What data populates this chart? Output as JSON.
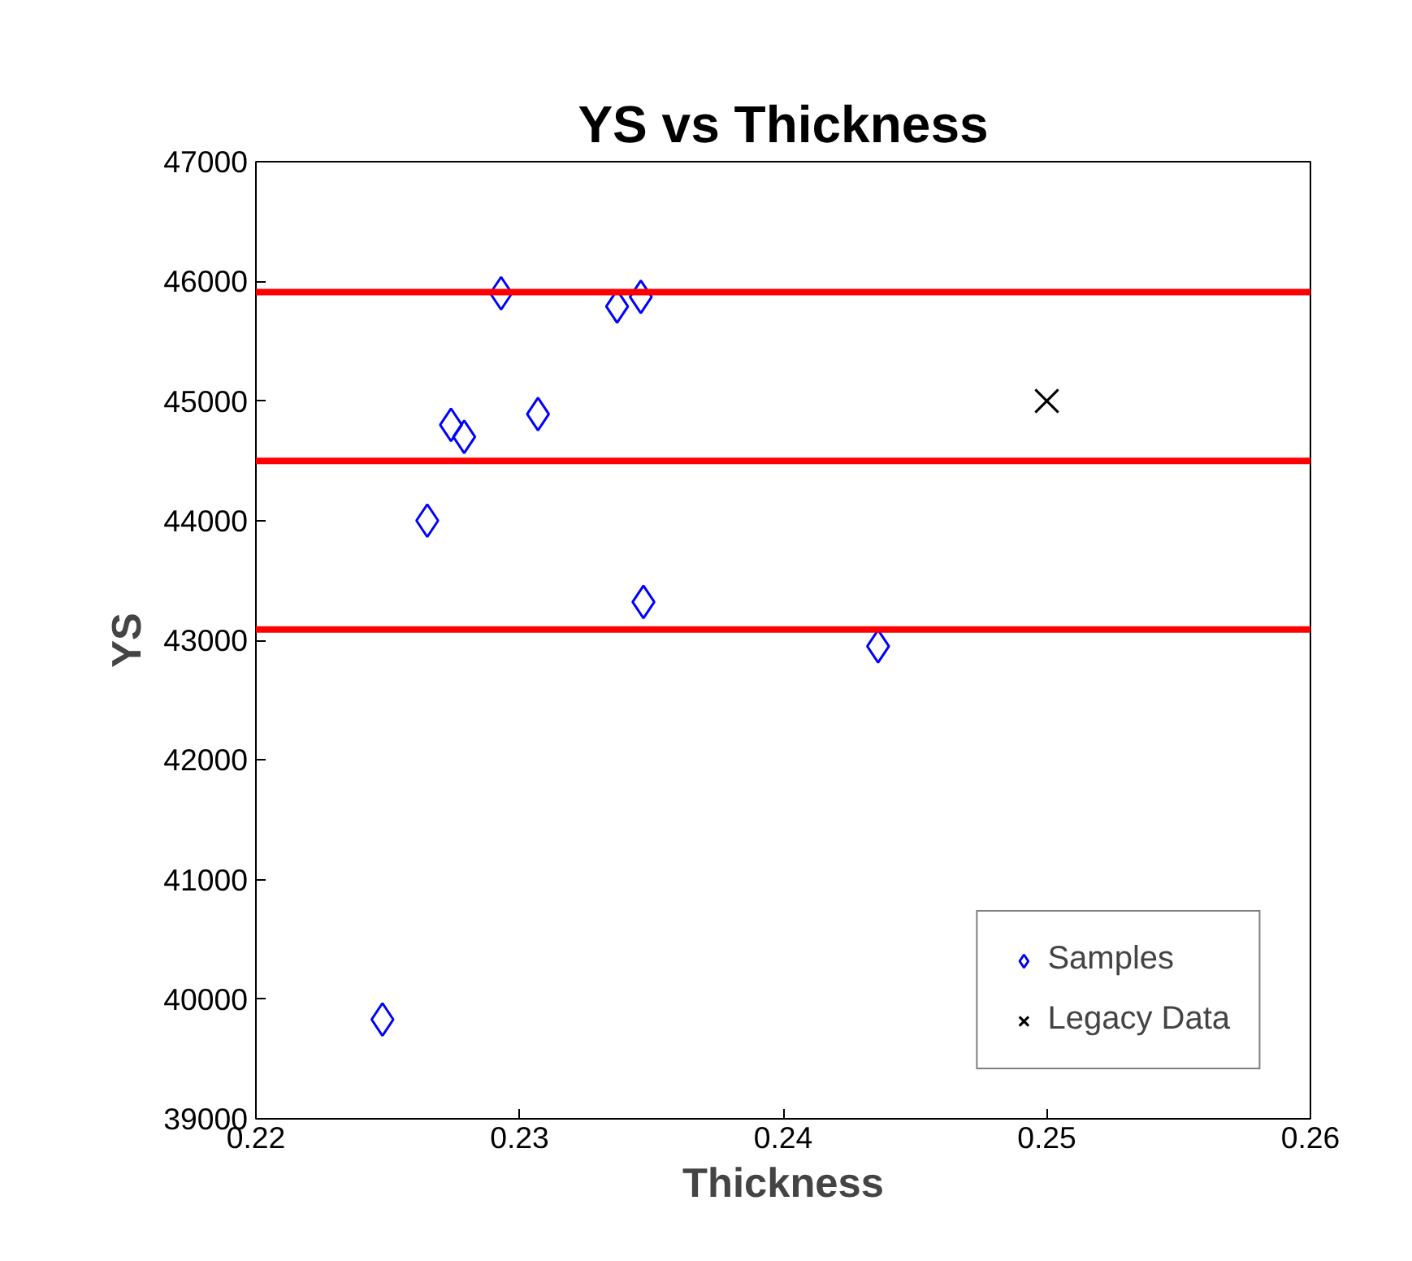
{
  "chart_data": {
    "type": "scatter",
    "title": "YS vs Thickness",
    "xlabel": "Thickness",
    "ylabel": "YS",
    "series": [
      {
        "name": "Samples",
        "color": "#0000ff",
        "marker": "diamond",
        "x": [
          0.2248,
          0.2265,
          0.2274,
          0.2279,
          0.2293,
          0.2307,
          0.2337,
          0.2346,
          0.2347,
          0.2436
        ],
        "values": [
          39830,
          44000,
          44800,
          44700,
          45900,
          44890,
          45790,
          45870,
          43320,
          42950
        ]
      },
      {
        "name": "Legacy Data",
        "color": "#000000",
        "marker": "cross",
        "x": [
          0.25
        ],
        "values": [
          45000
        ]
      }
    ],
    "xlim": [
      0.22,
      0.26
    ],
    "xticks": [
      0.22,
      0.23,
      0.24,
      0.25,
      0.26
    ],
    "ylim": [
      39000,
      47000
    ],
    "yticks": [
      39000,
      40000,
      41000,
      42000,
      43000,
      44000,
      45000,
      46000,
      47000
    ],
    "ref_lines": [
      {
        "axis": "y",
        "value": 45910,
        "color": "#ff0000"
      },
      {
        "axis": "y",
        "value": 44500,
        "color": "#ff0000"
      },
      {
        "axis": "y",
        "value": 43090,
        "color": "#ff0000"
      }
    ],
    "grid": false,
    "legend": "bottom right"
  }
}
